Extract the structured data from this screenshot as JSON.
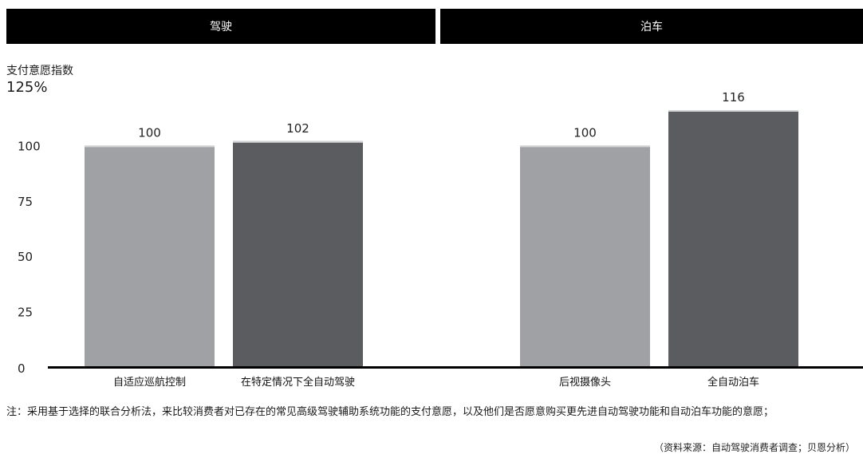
{
  "headers": {
    "left": "驾驶",
    "right": "泊车"
  },
  "ylabel": "支付意愿指数",
  "ymax_label": "125%",
  "note": "注：采用基于选择的联合分析法，来比较消费者对已存在的常见高级驾驶辅助系统功能的支付意愿，以及他们是否愿意购买更先进自动驾驶功能和自动泊车功能的意愿；",
  "source": "（资料来源：自动驾驶消费者调查；贝恩分析）",
  "colors": {
    "light_bar": "#9fa1a5",
    "dark_bar": "#5a5c5f",
    "header_bg": "#000000",
    "axis": "#000000"
  },
  "chart_data": {
    "type": "bar",
    "groups": [
      "驾驶",
      "泊车"
    ],
    "categories": [
      "自适应巡航控制",
      "在特定情况下全自动驾驶",
      "后视摄像头",
      "全自动泊车"
    ],
    "values": [
      100,
      102,
      100,
      116
    ],
    "ylabel": "支付意愿指数",
    "ylim": [
      0,
      125
    ],
    "yticks": [
      0,
      25,
      50,
      75,
      100
    ],
    "grid": false,
    "legend": "none"
  }
}
